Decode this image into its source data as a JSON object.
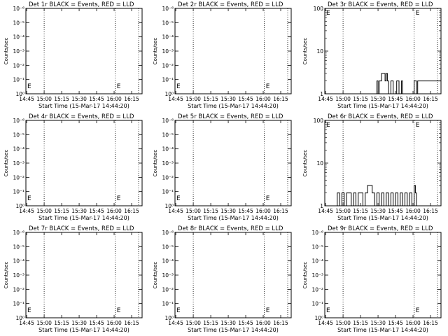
{
  "panels": [
    {
      "title": "Det 1r BLACK = Events, RED = LLD",
      "ylabel": "Counts/sec",
      "xlabel": "Start Time (15-Mar-17 14:44:20)",
      "xticks": [
        "14:45",
        "15:00",
        "15:15",
        "15:30",
        "15:45",
        "16:00",
        "16:15"
      ],
      "yticks": [
        "10⁰",
        "10⁻¹",
        "10⁻²",
        "10⁻³",
        "10⁻⁴",
        "10⁻⁵",
        "10⁻⁶"
      ],
      "marker": "E"
    },
    {
      "title": "Det 2r BLACK = Events, RED = LLD",
      "ylabel": "Counts/sec",
      "xlabel": "Start Time (15-Mar-17 14:44:20)",
      "xticks": [
        "14:45",
        "15:00",
        "15:15",
        "15:30",
        "15:45",
        "16:00",
        "16:15"
      ],
      "yticks": [
        "10⁰",
        "10⁻¹",
        "10⁻²",
        "10⁻³",
        "10⁻⁴",
        "10⁻⁵",
        "10⁻⁶"
      ],
      "marker": "E"
    },
    {
      "title": "Det 3r BLACK = Events, RED = LLD",
      "ylabel": "Counts/sec",
      "xlabel": "Start Time (15-Mar-17 14:44:20)",
      "xticks": [
        "14:45",
        "15:00",
        "15:15",
        "15:30",
        "15:45",
        "16:00",
        "16:15"
      ],
      "yticks": [
        "1",
        "10",
        "100"
      ],
      "marker": "E"
    },
    {
      "title": "Det 4r BLACK = Events, RED = LLD",
      "ylabel": "Counts/sec",
      "xlabel": "Start Time (15-Mar-17 14:44:20)",
      "xticks": [
        "14:45",
        "15:00",
        "15:15",
        "15:30",
        "15:45",
        "16:00",
        "16:15"
      ],
      "yticks": [
        "10⁰",
        "10⁻¹",
        "10⁻²",
        "10⁻³",
        "10⁻⁴",
        "10⁻⁵",
        "10⁻⁶"
      ],
      "marker": "E"
    },
    {
      "title": "Det 5r BLACK = Events, RED = LLD",
      "ylabel": "Counts/sec",
      "xlabel": "Start Time (15-Mar-17 14:44:20)",
      "xticks": [
        "14:45",
        "15:00",
        "15:15",
        "15:30",
        "15:45",
        "16:00",
        "16:15"
      ],
      "yticks": [
        "10⁰",
        "10⁻¹",
        "10⁻²",
        "10⁻³",
        "10⁻⁴",
        "10⁻⁵",
        "10⁻⁶"
      ],
      "marker": "E"
    },
    {
      "title": "Det 6r BLACK = Events, RED = LLD",
      "ylabel": "Counts/sec",
      "xlabel": "Start Time (15-Mar-17 14:44:20)",
      "xticks": [
        "14:45",
        "15:00",
        "15:15",
        "15:30",
        "15:45",
        "16:00",
        "16:15"
      ],
      "yticks": [
        "1",
        "10",
        "100"
      ],
      "marker": "E"
    },
    {
      "title": "Det 7r BLACK = Events, RED = LLD",
      "ylabel": "Counts/sec",
      "xlabel": "Start Time (15-Mar-17 14:44:20)",
      "xticks": [
        "14:45",
        "15:00",
        "15:15",
        "15:30",
        "15:45",
        "16:00",
        "16:15"
      ],
      "yticks": [
        "10⁰",
        "10⁻¹",
        "10⁻²",
        "10⁻³",
        "10⁻⁴",
        "10⁻⁵",
        "10⁻⁶"
      ],
      "marker": "E"
    },
    {
      "title": "Det 8r BLACK = Events, RED = LLD",
      "ylabel": "Counts/sec",
      "xlabel": "Start Time (15-Mar-17 14:44:20)",
      "xticks": [
        "14:45",
        "15:00",
        "15:15",
        "15:30",
        "15:45",
        "16:00",
        "16:15"
      ],
      "yticks": [
        "10⁰",
        "10⁻¹",
        "10⁻²",
        "10⁻³",
        "10⁻⁴",
        "10⁻⁵",
        "10⁻⁶"
      ],
      "marker": "E"
    },
    {
      "title": "Det 9r BLACK = Events, RED = LLD",
      "ylabel": "Counts/sec",
      "xlabel": "Start Time (15-Mar-17 14:44:20)",
      "xticks": [
        "14:45",
        "15:00",
        "15:15",
        "15:30",
        "15:45",
        "16:00",
        "16:15"
      ],
      "yticks": [
        "10⁰",
        "10⁻¹",
        "10⁻²",
        "10⁻³",
        "10⁻⁴",
        "10⁻⁵",
        "10⁻⁶"
      ],
      "marker": "E"
    }
  ],
  "chart_data": [
    {
      "type": "line",
      "title": "Det 1r BLACK = Events, RED = LLD",
      "xlabel": "Start Time (15-Mar-17 14:44:20)",
      "ylabel": "Counts/sec",
      "y_scale": "log",
      "ylim": [
        1e-06,
        1
      ],
      "xlim": [
        "14:44:20",
        "16:24"
      ],
      "grid": false,
      "vlines": [
        "15:00",
        "16:01",
        "16:21"
      ],
      "series": []
    },
    {
      "type": "line",
      "title": "Det 2r BLACK = Events, RED = LLD",
      "xlabel": "Start Time (15-Mar-17 14:44:20)",
      "ylabel": "Counts/sec",
      "y_scale": "log",
      "ylim": [
        1e-06,
        1
      ],
      "xlim": [
        "14:44:20",
        "16:24"
      ],
      "grid": false,
      "vlines": [
        "15:00",
        "16:01",
        "16:21"
      ],
      "series": []
    },
    {
      "type": "line",
      "title": "Det 3r BLACK = Events, RED = LLD",
      "xlabel": "Start Time (15-Mar-17 14:44:20)",
      "ylabel": "Counts/sec",
      "y_scale": "log",
      "ylim": [
        1,
        100
      ],
      "xlim": [
        "14:44:20",
        "16:24"
      ],
      "grid": false,
      "vlines": [
        "15:00",
        "16:01",
        "16:21"
      ],
      "series": [
        {
          "color": "#000000",
          "x": [
            "14:44:20",
            "15:28",
            "15:29",
            "15:30",
            "15:31",
            "15:32",
            "15:33",
            "15:34",
            "15:35",
            "15:36",
            "15:37",
            "15:38",
            "15:39",
            "15:40",
            "15:41",
            "15:42",
            "15:43",
            "15:44",
            "15:45",
            "15:46",
            "15:47",
            "15:48",
            "15:49",
            "15:50",
            "15:51",
            "16:00",
            "16:01",
            "16:02",
            "16:03",
            "16:04",
            "16:24"
          ],
          "y": [
            1,
            1,
            2,
            1,
            2,
            2,
            3,
            3,
            3,
            2,
            3,
            2,
            1,
            1,
            2,
            2,
            1,
            1,
            1,
            2,
            2,
            1,
            1,
            2,
            1,
            1,
            2,
            2,
            1,
            2,
            1
          ]
        }
      ]
    },
    {
      "type": "line",
      "title": "Det 4r BLACK = Events, RED = LLD",
      "xlabel": "Start Time (15-Mar-17 14:44:20)",
      "ylabel": "Counts/sec",
      "y_scale": "log",
      "ylim": [
        1e-06,
        1
      ],
      "xlim": [
        "14:44:20",
        "16:24"
      ],
      "grid": false,
      "vlines": [
        "15:00",
        "16:01",
        "16:21"
      ],
      "series": []
    },
    {
      "type": "line",
      "title": "Det 5r BLACK = Events, RED = LLD",
      "xlabel": "Start Time (15-Mar-17 14:44:20)",
      "ylabel": "Counts/sec",
      "y_scale": "log",
      "ylim": [
        1e-06,
        1
      ],
      "xlim": [
        "14:44:20",
        "16:24"
      ],
      "grid": false,
      "vlines": [
        "15:00",
        "16:01",
        "16:21"
      ],
      "series": []
    },
    {
      "type": "line",
      "title": "Det 6r BLACK = Events, RED = LLD",
      "xlabel": "Start Time (15-Mar-17 14:44:20)",
      "ylabel": "Counts/sec",
      "y_scale": "log",
      "ylim": [
        1,
        100
      ],
      "xlim": [
        "14:44:20",
        "16:24"
      ],
      "grid": false,
      "vlines": [
        "15:00",
        "16:01",
        "16:21"
      ],
      "series": [
        {
          "color": "#000000",
          "x": [
            "14:44:20",
            "14:55",
            "14:57",
            "14:59",
            "15:01",
            "15:03",
            "15:05",
            "15:07",
            "15:09",
            "15:11",
            "15:13",
            "15:15",
            "15:17",
            "15:19",
            "15:21",
            "15:23",
            "15:25",
            "15:27",
            "15:29",
            "15:31",
            "15:33",
            "15:35",
            "15:37",
            "15:39",
            "15:41",
            "15:43",
            "15:45",
            "15:47",
            "15:49",
            "15:51",
            "15:53",
            "15:55",
            "15:57",
            "15:59",
            "16:01",
            "16:02",
            "16:03",
            "16:24"
          ],
          "y": [
            1,
            2,
            1,
            2,
            1,
            2,
            2,
            1,
            2,
            1,
            2,
            2,
            1,
            2,
            3,
            3,
            2,
            1,
            2,
            1,
            2,
            1,
            2,
            1,
            2,
            1,
            2,
            1,
            2,
            1,
            2,
            1,
            2,
            1,
            3,
            2,
            1,
            1
          ]
        }
      ]
    },
    {
      "type": "line",
      "title": "Det 7r BLACK = Events, RED = LLD",
      "xlabel": "Start Time (15-Mar-17 14:44:20)",
      "ylabel": "Counts/sec",
      "y_scale": "log",
      "ylim": [
        1e-06,
        1
      ],
      "xlim": [
        "14:44:20",
        "16:24"
      ],
      "grid": false,
      "vlines": [
        "15:00",
        "16:01",
        "16:21"
      ],
      "series": []
    },
    {
      "type": "line",
      "title": "Det 8r BLACK = Events, RED = LLD",
      "xlabel": "Start Time (15-Mar-17 14:44:20)",
      "ylabel": "Counts/sec",
      "y_scale": "log",
      "ylim": [
        1e-06,
        1
      ],
      "xlim": [
        "14:44:20",
        "16:24"
      ],
      "grid": false,
      "vlines": [
        "15:00",
        "16:01",
        "16:21"
      ],
      "series": []
    },
    {
      "type": "line",
      "title": "Det 9r BLACK = Events, RED = LLD",
      "xlabel": "Start Time (15-Mar-17 14:44:20)",
      "ylabel": "Counts/sec",
      "y_scale": "log",
      "ylim": [
        1e-06,
        1
      ],
      "xlim": [
        "14:44:20",
        "16:24"
      ],
      "grid": false,
      "vlines": [
        "15:00",
        "16:01",
        "16:21"
      ],
      "series": []
    }
  ]
}
